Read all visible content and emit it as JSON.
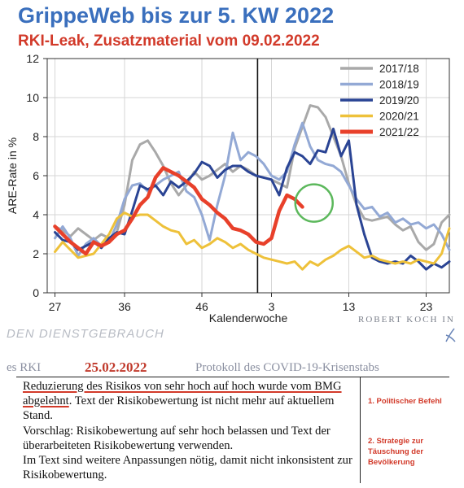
{
  "header": {
    "title": "GrippeWeb bis zur 5. KW 2022",
    "subtitle": "RKI-Leak, Zusatzmaterial vom 09.02.2022"
  },
  "chart_data": {
    "type": "line",
    "xlabel": "Kalenderwoche",
    "ylabel": "ARE-Rate in %",
    "ylim": [
      0,
      12
    ],
    "yticks": [
      0,
      2,
      4,
      6,
      8,
      10,
      12
    ],
    "xtick_labels": [
      "27",
      "36",
      "46",
      "3",
      "13",
      "23"
    ],
    "x_description": "Kalenderwochen 27 bis 26 (Saisonindex 0 bis 51)",
    "xtick_positions": [
      0,
      9,
      19,
      28,
      38,
      48
    ],
    "xlim": [
      -1,
      51
    ],
    "grid": true,
    "legend_position": "top-right",
    "season_boundary_x": 26.2,
    "series": [
      {
        "name": "2017/18",
        "color": "#a9a9a9",
        "values": [
          3.4,
          3.2,
          2.9,
          3.3,
          3.0,
          2.7,
          3.0,
          2.8,
          3.1,
          4.5,
          6.8,
          7.6,
          7.8,
          7.2,
          6.5,
          5.6,
          5.0,
          5.5,
          6.2,
          5.8,
          6.0,
          6.3,
          6.6,
          6.2,
          6.5,
          6.3,
          6.0,
          5.9,
          5.8,
          5.6,
          5.4,
          7.4,
          8.5,
          9.6,
          9.5,
          9.0,
          8.0,
          7.0,
          5.6,
          4.5,
          3.8,
          3.7,
          3.8,
          3.9,
          3.5,
          3.2,
          3.4,
          2.6,
          2.2,
          2.5,
          3.6,
          4.0
        ]
      },
      {
        "name": "2018/19",
        "color": "#93a9d5",
        "values": [
          2.8,
          3.4,
          2.8,
          1.9,
          2.5,
          2.8,
          2.4,
          2.6,
          3.5,
          4.8,
          5.5,
          5.6,
          5.2,
          5.5,
          5.8,
          6.0,
          6.2,
          5.2,
          4.9,
          4.0,
          2.7,
          4.5,
          6.0,
          8.2,
          6.8,
          7.2,
          7.0,
          6.6,
          6.0,
          5.8,
          6.2,
          7.6,
          8.7,
          7.5,
          6.8,
          6.6,
          6.5,
          6.2,
          5.5,
          4.8,
          4.3,
          4.4,
          3.9,
          4.1,
          3.6,
          3.8,
          3.5,
          3.6,
          3.3,
          3.5,
          3.0,
          2.2
        ]
      },
      {
        "name": "2019/20",
        "color": "#2a4494",
        "values": [
          3.1,
          2.7,
          2.6,
          2.2,
          2.4,
          2.6,
          2.3,
          2.8,
          3.1,
          3.0,
          4.2,
          5.5,
          5.3,
          5.5,
          5.0,
          5.7,
          5.4,
          5.7,
          6.1,
          6.7,
          6.5,
          5.9,
          6.3,
          6.5,
          6.5,
          6.2,
          6.0,
          5.9,
          5.8,
          5.0,
          6.4,
          7.2,
          7.0,
          6.6,
          7.3,
          7.2,
          8.4,
          7.0,
          7.8,
          4.5,
          3.0,
          1.8,
          1.6,
          1.5,
          1.6,
          1.5,
          1.9,
          1.6,
          1.2,
          1.5,
          1.3,
          1.6
        ]
      },
      {
        "name": "2020/21",
        "color": "#eec13a",
        "values": [
          2.1,
          2.6,
          2.2,
          1.8,
          1.9,
          2.0,
          2.5,
          3.0,
          3.8,
          4.1,
          3.9,
          4.0,
          4.0,
          3.7,
          3.4,
          3.2,
          3.1,
          2.5,
          2.7,
          2.3,
          2.5,
          2.8,
          2.6,
          2.3,
          2.5,
          2.2,
          2.0,
          1.8,
          1.7,
          1.6,
          1.5,
          1.6,
          1.2,
          1.6,
          1.4,
          1.7,
          1.9,
          2.2,
          2.4,
          2.1,
          1.8,
          1.9,
          1.7,
          1.6,
          1.5,
          1.6,
          1.5,
          1.7,
          1.6,
          1.5,
          2.0,
          3.3
        ]
      },
      {
        "name": "2021/22",
        "color": "#e8402a",
        "values": [
          3.4,
          3.0,
          2.6,
          2.3,
          2.0,
          2.6,
          2.4,
          2.6,
          3.0,
          3.2,
          3.8,
          4.5,
          4.9,
          5.9,
          6.4,
          6.2,
          6.0,
          5.7,
          5.4,
          4.8,
          4.5,
          4.1,
          3.8,
          3.3,
          3.2,
          3.0,
          2.6,
          2.5,
          2.8,
          4.2,
          5.0,
          4.8,
          4.4
        ]
      }
    ],
    "annotation": {
      "type": "circle",
      "color": "#5cb85c",
      "x": 33.5,
      "y": 4.6
    }
  },
  "logo": {
    "text": "ROBERT KOCH IN"
  },
  "watermark": "DEN DIENSTGEBRAUCH",
  "document": {
    "prefix": "es RKI",
    "date": "25.02.2022",
    "title": "Protokoll des COVID-19-Krisenstabs",
    "underlined": "Reduzierung des Risikos von sehr hoch auf hoch wurde vom BMG abgelehnt",
    "paragraph1_rest": ". Text der Risikobewertung ist nicht mehr auf aktuellem Stand.",
    "paragraph2": "Vorschlag: Risikobewertung auf sehr hoch belassen und Text der überarbeiteten Risikobewertung verwenden.",
    "paragraph3": "Im Text sind weitere Anpassungen nötig, damit nicht inkonsistent zur Risikobewertung.",
    "margin_note1": "1. Politischer Befehl",
    "margin_note2": "2. Strategie zur Täuschung der Bevölkerung"
  }
}
